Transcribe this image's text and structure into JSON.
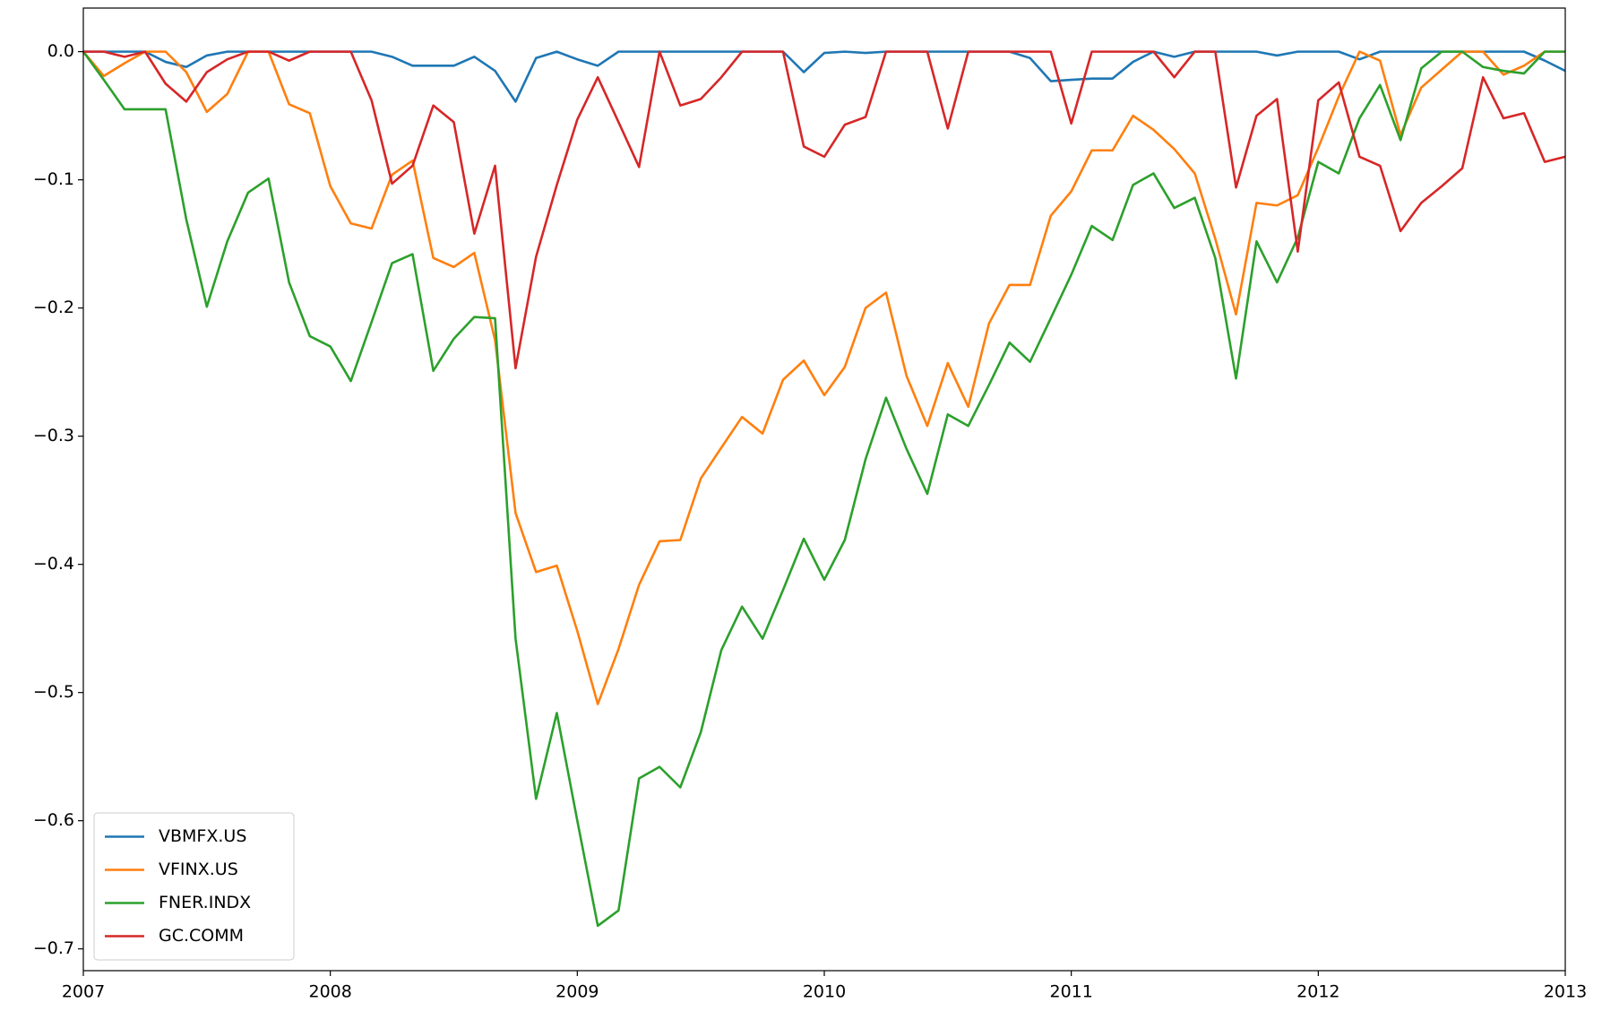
{
  "chart_data": {
    "type": "line",
    "x": [
      2007,
      2007.083,
      2007.167,
      2007.25,
      2007.333,
      2007.417,
      2007.5,
      2007.583,
      2007.667,
      2007.75,
      2007.833,
      2007.917,
      2008,
      2008.083,
      2008.167,
      2008.25,
      2008.333,
      2008.417,
      2008.5,
      2008.583,
      2008.667,
      2008.75,
      2008.833,
      2008.917,
      2009,
      2009.083,
      2009.167,
      2009.25,
      2009.333,
      2009.417,
      2009.5,
      2009.583,
      2009.667,
      2009.75,
      2009.833,
      2009.917,
      2010,
      2010.083,
      2010.167,
      2010.25,
      2010.333,
      2010.417,
      2010.5,
      2010.583,
      2010.667,
      2010.75,
      2010.833,
      2010.917,
      2011,
      2011.083,
      2011.167,
      2011.25,
      2011.333,
      2011.417,
      2011.5,
      2011.583,
      2011.667,
      2011.75,
      2011.833,
      2011.917,
      2012,
      2012.083,
      2012.167,
      2012.25,
      2012.333,
      2012.417,
      2012.5,
      2012.583,
      2012.667,
      2012.75,
      2012.833,
      2012.917,
      2013
    ],
    "series": [
      {
        "name": "VBMFX.US",
        "color": "#1f77b4",
        "values": [
          0,
          0,
          0,
          0,
          -0.008,
          -0.012,
          -0.003,
          0,
          0,
          0,
          0,
          0,
          0,
          0,
          0,
          -0.004,
          -0.011,
          -0.011,
          -0.011,
          -0.004,
          -0.015,
          -0.039,
          -0.005,
          0,
          -0.006,
          -0.011,
          0,
          0,
          0,
          0,
          0,
          0,
          0,
          0,
          0,
          -0.016,
          -0.001,
          0,
          -0.001,
          0,
          0,
          0,
          0,
          0,
          0,
          0,
          -0.005,
          -0.023,
          -0.022,
          -0.021,
          -0.021,
          -0.008,
          0,
          -0.004,
          0,
          0,
          0,
          0,
          -0.003,
          0,
          0,
          0,
          -0.006,
          0,
          0,
          0,
          0,
          0,
          0,
          0,
          0,
          -0.007,
          -0.015
        ]
      },
      {
        "name": "VFINX.US",
        "color": "#ff7f0e",
        "values": [
          0,
          -0.019,
          -0.009,
          0,
          0,
          -0.016,
          -0.047,
          -0.033,
          0,
          0,
          -0.041,
          -0.048,
          -0.105,
          -0.134,
          -0.138,
          -0.096,
          -0.085,
          -0.161,
          -0.168,
          -0.157,
          -0.225,
          -0.36,
          -0.406,
          -0.401,
          -0.452,
          -0.509,
          -0.466,
          -0.416,
          -0.382,
          -0.381,
          -0.333,
          -0.309,
          -0.285,
          -0.298,
          -0.256,
          -0.241,
          -0.268,
          -0.246,
          -0.2,
          -0.188,
          -0.253,
          -0.292,
          -0.243,
          -0.277,
          -0.212,
          -0.182,
          -0.182,
          -0.128,
          -0.109,
          -0.077,
          -0.077,
          -0.05,
          -0.061,
          -0.076,
          -0.095,
          -0.146,
          -0.205,
          -0.118,
          -0.12,
          -0.112,
          -0.075,
          -0.035,
          0,
          -0.007,
          -0.065,
          -0.028,
          -0.014,
          0,
          0,
          -0.018,
          -0.011,
          0,
          0
        ]
      },
      {
        "name": "FNER.INDX",
        "color": "#2ca02c",
        "values": [
          0,
          -0.022,
          -0.045,
          -0.045,
          -0.045,
          -0.131,
          -0.199,
          -0.148,
          -0.11,
          -0.099,
          -0.18,
          -0.222,
          -0.23,
          -0.257,
          -0.211,
          -0.165,
          -0.158,
          -0.249,
          -0.224,
          -0.207,
          -0.208,
          -0.458,
          -0.583,
          -0.516,
          -0.6,
          -0.682,
          -0.67,
          -0.567,
          -0.558,
          -0.574,
          -0.531,
          -0.467,
          -0.433,
          -0.458,
          -0.42,
          -0.38,
          -0.412,
          -0.381,
          -0.318,
          -0.27,
          -0.31,
          -0.345,
          -0.283,
          -0.292,
          -0.26,
          -0.227,
          -0.242,
          -0.208,
          -0.174,
          -0.136,
          -0.147,
          -0.104,
          -0.095,
          -0.122,
          -0.114,
          -0.161,
          -0.255,
          -0.148,
          -0.18,
          -0.145,
          -0.086,
          -0.095,
          -0.052,
          -0.026,
          -0.069,
          -0.013,
          0,
          0,
          -0.012,
          -0.015,
          -0.017,
          0,
          0
        ]
      },
      {
        "name": "GC.COMM",
        "color": "#d62728",
        "values": [
          0,
          0,
          -0.004,
          0,
          -0.025,
          -0.039,
          -0.016,
          -0.006,
          0,
          0,
          -0.007,
          0,
          0,
          0,
          -0.038,
          -0.103,
          -0.089,
          -0.042,
          -0.055,
          -0.142,
          -0.089,
          -0.247,
          -0.16,
          -0.104,
          -0.053,
          -0.02,
          -0.055,
          -0.09,
          0,
          -0.042,
          -0.037,
          -0.02,
          0,
          0,
          0,
          -0.074,
          -0.082,
          -0.057,
          -0.051,
          0,
          0,
          0,
          -0.06,
          0,
          0,
          0,
          0,
          0,
          -0.056,
          0,
          0,
          0,
          0,
          -0.02,
          0,
          0,
          -0.106,
          -0.05,
          -0.037,
          -0.156,
          -0.038,
          -0.024,
          -0.082,
          -0.089,
          -0.14,
          -0.118,
          -0.105,
          -0.091,
          -0.02,
          -0.052,
          -0.048,
          -0.086,
          -0.082
        ]
      }
    ],
    "xlim": [
      2007,
      2013
    ],
    "xticks": [
      2007,
      2008,
      2009,
      2010,
      2011,
      2012,
      2013
    ],
    "ylim": [
      -0.717,
      0.034
    ],
    "yticks": [
      {
        "value": 0,
        "label": "0.0"
      },
      {
        "value": -0.1,
        "label": "−0.1"
      },
      {
        "value": -0.2,
        "label": "−0.2"
      },
      {
        "value": -0.3,
        "label": "−0.3"
      },
      {
        "value": -0.4,
        "label": "−0.4"
      },
      {
        "value": -0.5,
        "label": "−0.5"
      },
      {
        "value": -0.6,
        "label": "−0.6"
      },
      {
        "value": -0.7,
        "label": "−0.7"
      }
    ],
    "grid": false,
    "legend": "lower left"
  }
}
